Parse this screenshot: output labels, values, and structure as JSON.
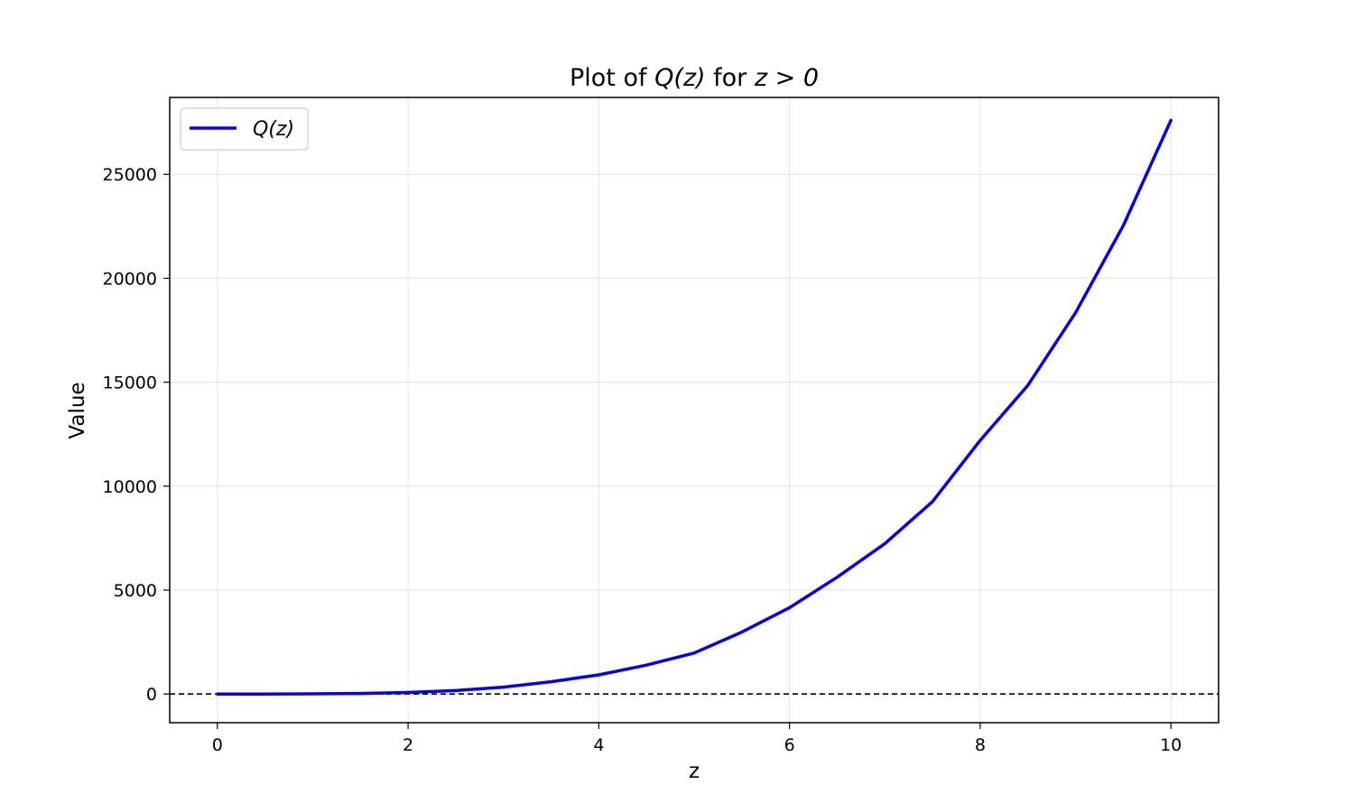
{
  "chart_data": {
    "type": "line",
    "title_parts": [
      "Plot of ",
      "Q(z)",
      " for ",
      "z > 0"
    ],
    "xlabel": "z",
    "ylabel": "Value",
    "xlim": [
      -0.5,
      10.5
    ],
    "ylim": [
      -1380,
      28700
    ],
    "x_ticks": [
      0,
      2,
      4,
      6,
      8,
      10
    ],
    "x_tick_labels": [
      "0",
      "2",
      "4",
      "6",
      "8",
      "10"
    ],
    "y_ticks": [
      0,
      5000,
      10000,
      15000,
      20000,
      25000
    ],
    "y_tick_labels": [
      "0",
      "5000",
      "10000",
      "15000",
      "20000",
      "25000"
    ],
    "grid": true,
    "legend": {
      "position": "top-left",
      "entries": [
        "Q(z)"
      ]
    },
    "reference_line": {
      "y": 0,
      "style": "dashed",
      "color": "#000000"
    },
    "series": [
      {
        "name": "Q(z)",
        "color": "#0000ff",
        "x": [
          0,
          0.5,
          1,
          1.5,
          2,
          2.5,
          3,
          3.5,
          4,
          4.5,
          5,
          5.5,
          6,
          6.5,
          7,
          7.5,
          8,
          8.5,
          9,
          9.5,
          10
        ],
        "y": [
          0,
          1,
          7,
          28,
          76,
          166,
          331,
          590,
          920,
          1390,
          1970,
          2980,
          4150,
          5620,
          7230,
          9260,
          12200,
          14850,
          18340,
          22530,
          27600
        ]
      }
    ]
  }
}
